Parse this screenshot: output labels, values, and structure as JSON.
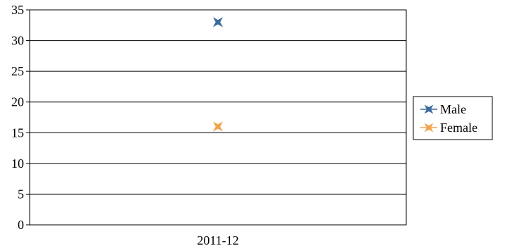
{
  "chart_data": {
    "type": "scatter",
    "categories": [
      "2011-12"
    ],
    "series": [
      {
        "name": "Male",
        "values": [
          33
        ],
        "color": "#3C6A9C",
        "marker": "star4"
      },
      {
        "name": "Female",
        "values": [
          16
        ],
        "color": "#F0A44C",
        "marker": "star4"
      }
    ],
    "ylim": [
      0,
      35
    ],
    "yticks": [
      0,
      5,
      10,
      15,
      20,
      25,
      30,
      35
    ],
    "grid": true,
    "legend": "right"
  }
}
